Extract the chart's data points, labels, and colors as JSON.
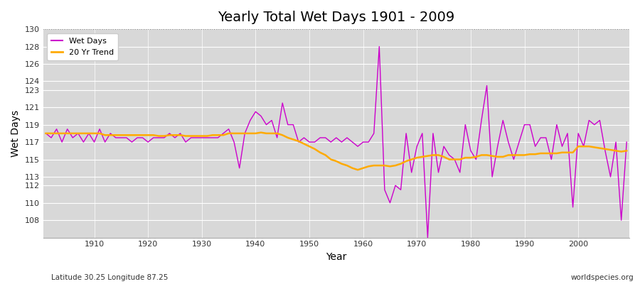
{
  "title": "Yearly Total Wet Days 1901 - 2009",
  "xlabel": "Year",
  "ylabel": "Wet Days",
  "subtitle": "Latitude 30.25 Longitude 87.25",
  "watermark": "worldspecies.org",
  "background_color": "#ffffff",
  "plot_bg_color": "#d8d8d8",
  "grid_color": "#ffffff",
  "line_color_wet": "#cc00cc",
  "line_color_trend": "#ffaa00",
  "ylim": [
    106,
    130
  ],
  "yticks": [
    108,
    110,
    112,
    113,
    115,
    117,
    119,
    121,
    123,
    124,
    126,
    128,
    130
  ],
  "xticks": [
    1910,
    1920,
    1930,
    1940,
    1950,
    1960,
    1970,
    1980,
    1990,
    2000
  ],
  "years": [
    1901,
    1902,
    1903,
    1904,
    1905,
    1906,
    1907,
    1908,
    1909,
    1910,
    1911,
    1912,
    1913,
    1914,
    1915,
    1916,
    1917,
    1918,
    1919,
    1920,
    1921,
    1922,
    1923,
    1924,
    1925,
    1926,
    1927,
    1928,
    1929,
    1930,
    1931,
    1932,
    1933,
    1934,
    1935,
    1936,
    1937,
    1938,
    1939,
    1940,
    1941,
    1942,
    1943,
    1944,
    1945,
    1946,
    1947,
    1948,
    1949,
    1950,
    1951,
    1952,
    1953,
    1954,
    1955,
    1956,
    1957,
    1958,
    1959,
    1960,
    1961,
    1962,
    1963,
    1964,
    1965,
    1966,
    1967,
    1968,
    1969,
    1970,
    1971,
    1972,
    1973,
    1974,
    1975,
    1976,
    1977,
    1978,
    1979,
    1980,
    1981,
    1982,
    1983,
    1984,
    1985,
    1986,
    1987,
    1988,
    1989,
    1990,
    1991,
    1992,
    1993,
    1994,
    1995,
    1996,
    1997,
    1998,
    1999,
    2000,
    2001,
    2002,
    2003,
    2004,
    2005,
    2006,
    2007,
    2008,
    2009
  ],
  "wet_days": [
    118.0,
    117.5,
    118.5,
    117.0,
    118.5,
    117.5,
    118.0,
    117.0,
    118.0,
    117.0,
    118.5,
    117.0,
    118.0,
    117.5,
    117.5,
    117.5,
    117.0,
    117.5,
    117.5,
    117.0,
    117.5,
    117.5,
    117.5,
    118.0,
    117.5,
    118.0,
    117.0,
    117.5,
    117.5,
    117.5,
    117.5,
    117.5,
    117.5,
    118.0,
    118.5,
    117.0,
    114.0,
    118.0,
    119.5,
    120.5,
    120.0,
    119.0,
    119.5,
    117.5,
    121.5,
    119.0,
    119.0,
    117.0,
    117.5,
    117.0,
    117.0,
    117.5,
    117.5,
    117.0,
    117.5,
    117.0,
    117.5,
    117.0,
    116.5,
    117.0,
    117.0,
    118.0,
    128.0,
    111.5,
    110.0,
    112.0,
    111.5,
    118.0,
    113.5,
    116.5,
    118.0,
    106.0,
    118.0,
    113.5,
    116.5,
    115.5,
    115.0,
    113.5,
    119.0,
    116.0,
    115.0,
    119.5,
    123.5,
    113.0,
    116.5,
    119.5,
    117.0,
    115.0,
    117.0,
    119.0,
    119.0,
    116.5,
    117.5,
    117.5,
    115.0,
    119.0,
    116.5,
    118.0,
    109.5,
    118.0,
    116.5,
    119.5,
    119.0,
    119.5,
    116.0,
    113.0,
    117.0,
    108.0,
    117.0
  ],
  "trend": [
    118.0,
    118.0,
    118.0,
    118.0,
    118.0,
    118.0,
    118.0,
    118.0,
    118.0,
    118.0,
    118.0,
    117.8,
    117.8,
    117.8,
    117.8,
    117.8,
    117.8,
    117.8,
    117.8,
    117.8,
    117.8,
    117.7,
    117.7,
    117.8,
    117.8,
    117.8,
    117.7,
    117.7,
    117.7,
    117.7,
    117.7,
    117.8,
    117.8,
    117.8,
    118.0,
    118.0,
    118.0,
    118.0,
    118.0,
    118.0,
    118.1,
    118.0,
    118.0,
    118.0,
    117.8,
    117.5,
    117.3,
    117.1,
    116.8,
    116.5,
    116.2,
    115.8,
    115.5,
    115.0,
    114.8,
    114.5,
    114.3,
    114.0,
    113.8,
    114.0,
    114.2,
    114.3,
    114.3,
    114.3,
    114.2,
    114.3,
    114.5,
    114.8,
    115.0,
    115.2,
    115.3,
    115.4,
    115.5,
    115.5,
    115.3,
    115.0,
    115.0,
    115.0,
    115.2,
    115.2,
    115.3,
    115.5,
    115.5,
    115.4,
    115.3,
    115.3,
    115.5,
    115.5,
    115.5,
    115.5,
    115.6,
    115.6,
    115.7,
    115.7,
    115.7,
    115.7,
    115.8,
    115.8,
    115.8,
    116.5,
    116.5,
    116.5,
    116.4,
    116.3,
    116.2,
    116.1,
    116.0,
    115.9,
    116.0
  ]
}
